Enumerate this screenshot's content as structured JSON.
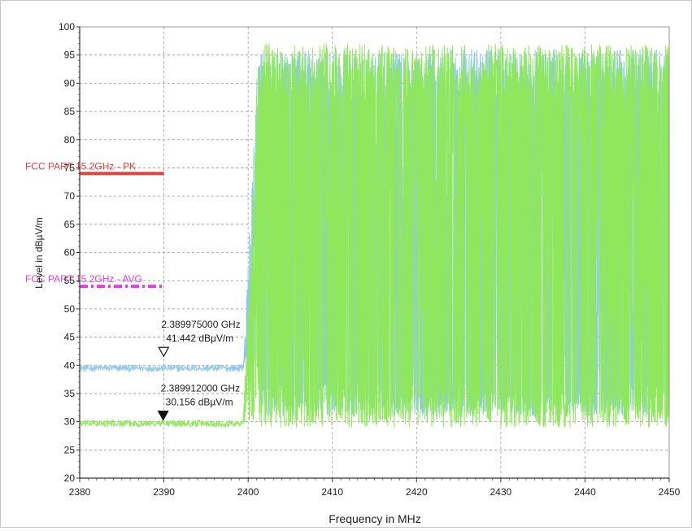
{
  "chart_data": {
    "type": "line",
    "title": "",
    "xlabel": "Frequency in MHz",
    "ylabel": "Level in dBµV/m",
    "xlim": [
      2380,
      2450
    ],
    "ylim": [
      20,
      100
    ],
    "x_ticks": [
      2380,
      2390,
      2400,
      2410,
      2420,
      2430,
      2440,
      2450
    ],
    "y_ticks": [
      20,
      25,
      30,
      35,
      40,
      45,
      50,
      55,
      60,
      65,
      70,
      75,
      80,
      85,
      90,
      95,
      100
    ],
    "grid": true,
    "limit_lines": [
      {
        "label": "FCC PART 15.2GHz - PK",
        "value": 74,
        "x_range": [
          2380,
          2390
        ],
        "color": "#e8413c",
        "style": "solid"
      },
      {
        "label": "FCC PART 15.2GHz - AVG",
        "value": 54,
        "x_range": [
          2380,
          2390
        ],
        "color": "#e040e0",
        "style": "dash-dot"
      }
    ],
    "series": [
      {
        "color": "#8ec8f0",
        "baseline_below_2400": 39.5,
        "edge_mhz": 2400,
        "band_above_2400": [
          31,
          96
        ],
        "x_sample": [
          2380,
          2385,
          2390,
          2395,
          2399,
          2400,
          2401,
          2410,
          2420,
          2430,
          2440,
          2450
        ],
        "y_sample": [
          39.5,
          39.6,
          39.8,
          39.5,
          40.5,
          55,
          93,
          95,
          94,
          95,
          96,
          85
        ]
      },
      {
        "color": "#8ee85a",
        "baseline_below_2400": 29.7,
        "edge_mhz": 2400,
        "band_above_2400": [
          29,
          97
        ],
        "x_sample": [
          2380,
          2385,
          2390,
          2395,
          2399,
          2400,
          2401,
          2410,
          2420,
          2430,
          2440,
          2450
        ],
        "y_sample": [
          29.7,
          29.6,
          29.8,
          29.9,
          30.2,
          60,
          92,
          96,
          95,
          94,
          97,
          84
        ]
      }
    ],
    "markers": [
      {
        "x": 2389.975,
        "y": 41.442,
        "style": "open",
        "line1": "2.389975000 GHz",
        "line2": "41.442 dBµV/m"
      },
      {
        "x": 2389.912,
        "y": 30.156,
        "style": "filled",
        "line1": "2.389912000 GHz",
        "line2": "30.156 dBµV/m"
      }
    ]
  }
}
